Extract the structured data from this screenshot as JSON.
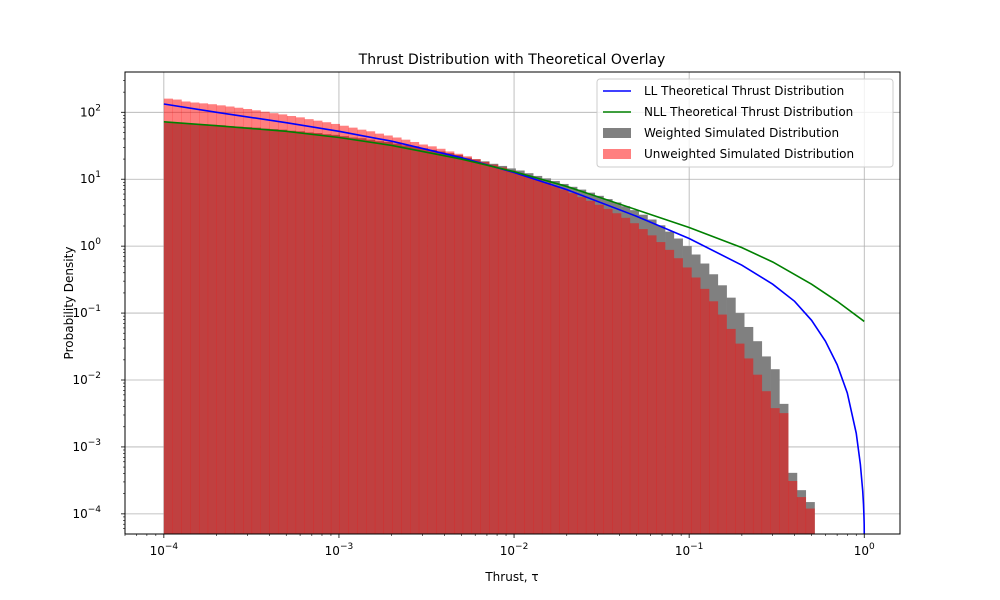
{
  "chart_data": {
    "type": "bar",
    "title": "Thrust Distribution with Theoretical Overlay",
    "xlabel": "Thrust, τ",
    "ylabel": "Probability Density",
    "x_scale": "log",
    "y_scale": "log",
    "xlim": [
      6e-05,
      1.6
    ],
    "ylim": [
      5e-05,
      400
    ],
    "grid": true,
    "legend_position": "upper-right",
    "x_ticks": [
      {
        "value": 0.0001,
        "base": "10",
        "exp": "−4"
      },
      {
        "value": 0.001,
        "base": "10",
        "exp": "−3"
      },
      {
        "value": 0.01,
        "base": "10",
        "exp": "−2"
      },
      {
        "value": 0.1,
        "base": "10",
        "exp": "−1"
      },
      {
        "value": 1,
        "base": "10",
        "exp": "0"
      }
    ],
    "y_ticks": [
      {
        "value": 0.0001,
        "base": "10",
        "exp": "−4"
      },
      {
        "value": 0.001,
        "base": "10",
        "exp": "−3"
      },
      {
        "value": 0.01,
        "base": "10",
        "exp": "−2"
      },
      {
        "value": 0.1,
        "base": "10",
        "exp": "−1"
      },
      {
        "value": 1,
        "base": "10",
        "exp": "0"
      },
      {
        "value": 10,
        "base": "10",
        "exp": "1"
      },
      {
        "value": 100,
        "base": "10",
        "exp": "2"
      }
    ],
    "bin_edges_range": [
      0.0001,
      0.52
    ],
    "histograms": [
      {
        "name": "Weighted Simulated Distribution",
        "color": "#808080",
        "opacity": 1.0,
        "values": [
          70,
          70,
          68,
          67,
          66,
          65,
          64,
          62,
          61,
          60,
          59,
          57,
          56,
          55,
          53,
          52,
          50,
          49,
          47,
          46,
          44,
          42,
          41,
          39,
          37,
          36,
          34,
          32,
          31,
          29,
          27.5,
          26,
          24.5,
          23,
          21,
          19.8,
          18.5,
          17,
          15.8,
          14.5,
          13.5,
          12.3,
          11.2,
          10.3,
          9.4,
          8.5,
          7.7,
          7.0,
          6.3,
          5.65,
          5.05,
          4.5,
          3.95,
          3.45,
          2.95,
          2.5,
          2.05,
          1.65,
          1.3,
          1.0,
          0.75,
          0.55,
          0.38,
          0.26,
          0.17,
          0.1,
          0.062,
          0.038,
          0.0225,
          0.0145,
          0.0044,
          0.00041,
          0.000226,
          0.00015
        ]
      },
      {
        "name": "Unweighted Simulated Distribution",
        "color": "#ff0000",
        "opacity": 0.5,
        "values": [
          160,
          155,
          145,
          140,
          136,
          132,
          127,
          122,
          117,
          112,
          107,
          102,
          97,
          93,
          88,
          84,
          79,
          75,
          71,
          67,
          63,
          59,
          55,
          52,
          48,
          45,
          42,
          39,
          36,
          33,
          31,
          28.5,
          26,
          24,
          22,
          20,
          18.2,
          16.5,
          15,
          13.5,
          12.2,
          11,
          9.9,
          8.9,
          7.9,
          7.0,
          6.2,
          5.4,
          4.75,
          4.15,
          3.6,
          3.1,
          2.65,
          2.2,
          1.8,
          1.45,
          1.15,
          0.88,
          0.66,
          0.48,
          0.34,
          0.23,
          0.15,
          0.095,
          0.058,
          0.035,
          0.021,
          0.012,
          0.0068,
          0.0038,
          0.0032,
          0.00031,
          0.000178,
          0.00012
        ]
      }
    ],
    "series": [
      {
        "name": "LL Theoretical Thrust Distribution",
        "color": "#0000ff",
        "type": "line",
        "x": [
          0.0001,
          0.0002,
          0.0005,
          0.001,
          0.002,
          0.005,
          0.01,
          0.02,
          0.05,
          0.1,
          0.2,
          0.3,
          0.4,
          0.5,
          0.6,
          0.7,
          0.8,
          0.9,
          0.95,
          0.98,
          0.99,
          0.995,
          0.999,
          1.0
        ],
        "y": [
          133,
          100,
          70,
          52,
          37,
          21,
          12.6,
          7.0,
          2.8,
          1.3,
          0.52,
          0.27,
          0.15,
          0.078,
          0.038,
          0.017,
          0.0064,
          0.0016,
          0.00055,
          0.00022,
          0.00014,
          0.0001,
          7e-05,
          5e-05
        ]
      },
      {
        "name": "NLL Theoretical Thrust Distribution",
        "color": "#008000",
        "type": "line",
        "x": [
          0.0001,
          0.0002,
          0.0005,
          0.001,
          0.002,
          0.005,
          0.01,
          0.02,
          0.05,
          0.1,
          0.2,
          0.3,
          0.5,
          0.7,
          1.0
        ],
        "y": [
          72,
          63,
          52,
          42,
          32,
          20,
          13,
          7.8,
          3.5,
          1.9,
          0.95,
          0.58,
          0.27,
          0.15,
          0.075
        ]
      }
    ]
  }
}
